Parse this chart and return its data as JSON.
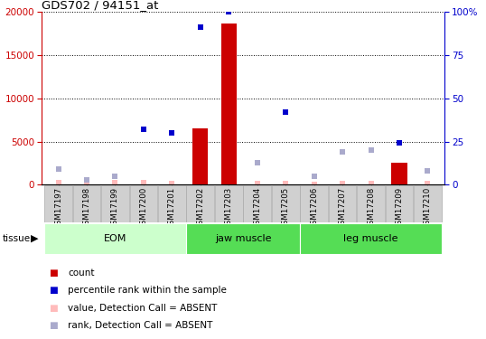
{
  "title": "GDS702 / 94151_at",
  "samples": [
    "GSM17197",
    "GSM17198",
    "GSM17199",
    "GSM17200",
    "GSM17201",
    "GSM17202",
    "GSM17203",
    "GSM17204",
    "GSM17205",
    "GSM17206",
    "GSM17207",
    "GSM17208",
    "GSM17209",
    "GSM17210"
  ],
  "count_values": [
    0,
    0,
    0,
    0,
    0,
    6500,
    18700,
    0,
    0,
    0,
    0,
    0,
    2500,
    0
  ],
  "count_is_present": [
    false,
    false,
    false,
    false,
    false,
    true,
    true,
    false,
    false,
    false,
    false,
    false,
    true,
    false
  ],
  "rank_values": [
    9,
    3,
    5,
    32,
    30,
    91,
    100,
    13,
    42,
    5,
    19,
    20,
    24,
    8
  ],
  "rank_is_present": [
    false,
    false,
    false,
    true,
    true,
    true,
    true,
    false,
    true,
    false,
    false,
    false,
    true,
    false
  ],
  "value_absent": [
    200,
    100,
    300,
    200,
    150,
    200,
    150,
    100,
    100,
    50,
    100,
    100,
    150,
    100
  ],
  "rank_absent_vals": [
    9,
    3,
    5,
    0,
    0,
    0,
    0,
    13,
    0,
    5,
    19,
    20,
    0,
    8
  ],
  "ylim_left": [
    0,
    20000
  ],
  "ylim_right": [
    0,
    100
  ],
  "yticks_left": [
    0,
    5000,
    10000,
    15000,
    20000
  ],
  "yticks_right": [
    0,
    25,
    50,
    75,
    100
  ],
  "color_red": "#cc0000",
  "color_blue": "#0000cc",
  "color_pink": "#ffbbbb",
  "color_lightblue": "#aaaacc",
  "group_names": [
    "EOM",
    "jaw muscle",
    "leg muscle"
  ],
  "group_starts": [
    0,
    5,
    9
  ],
  "group_ends": [
    4,
    8,
    13
  ],
  "group_colors": [
    "#ccffcc",
    "#55dd55",
    "#55dd55"
  ],
  "marker_size": 5,
  "bar_width": 0.55
}
